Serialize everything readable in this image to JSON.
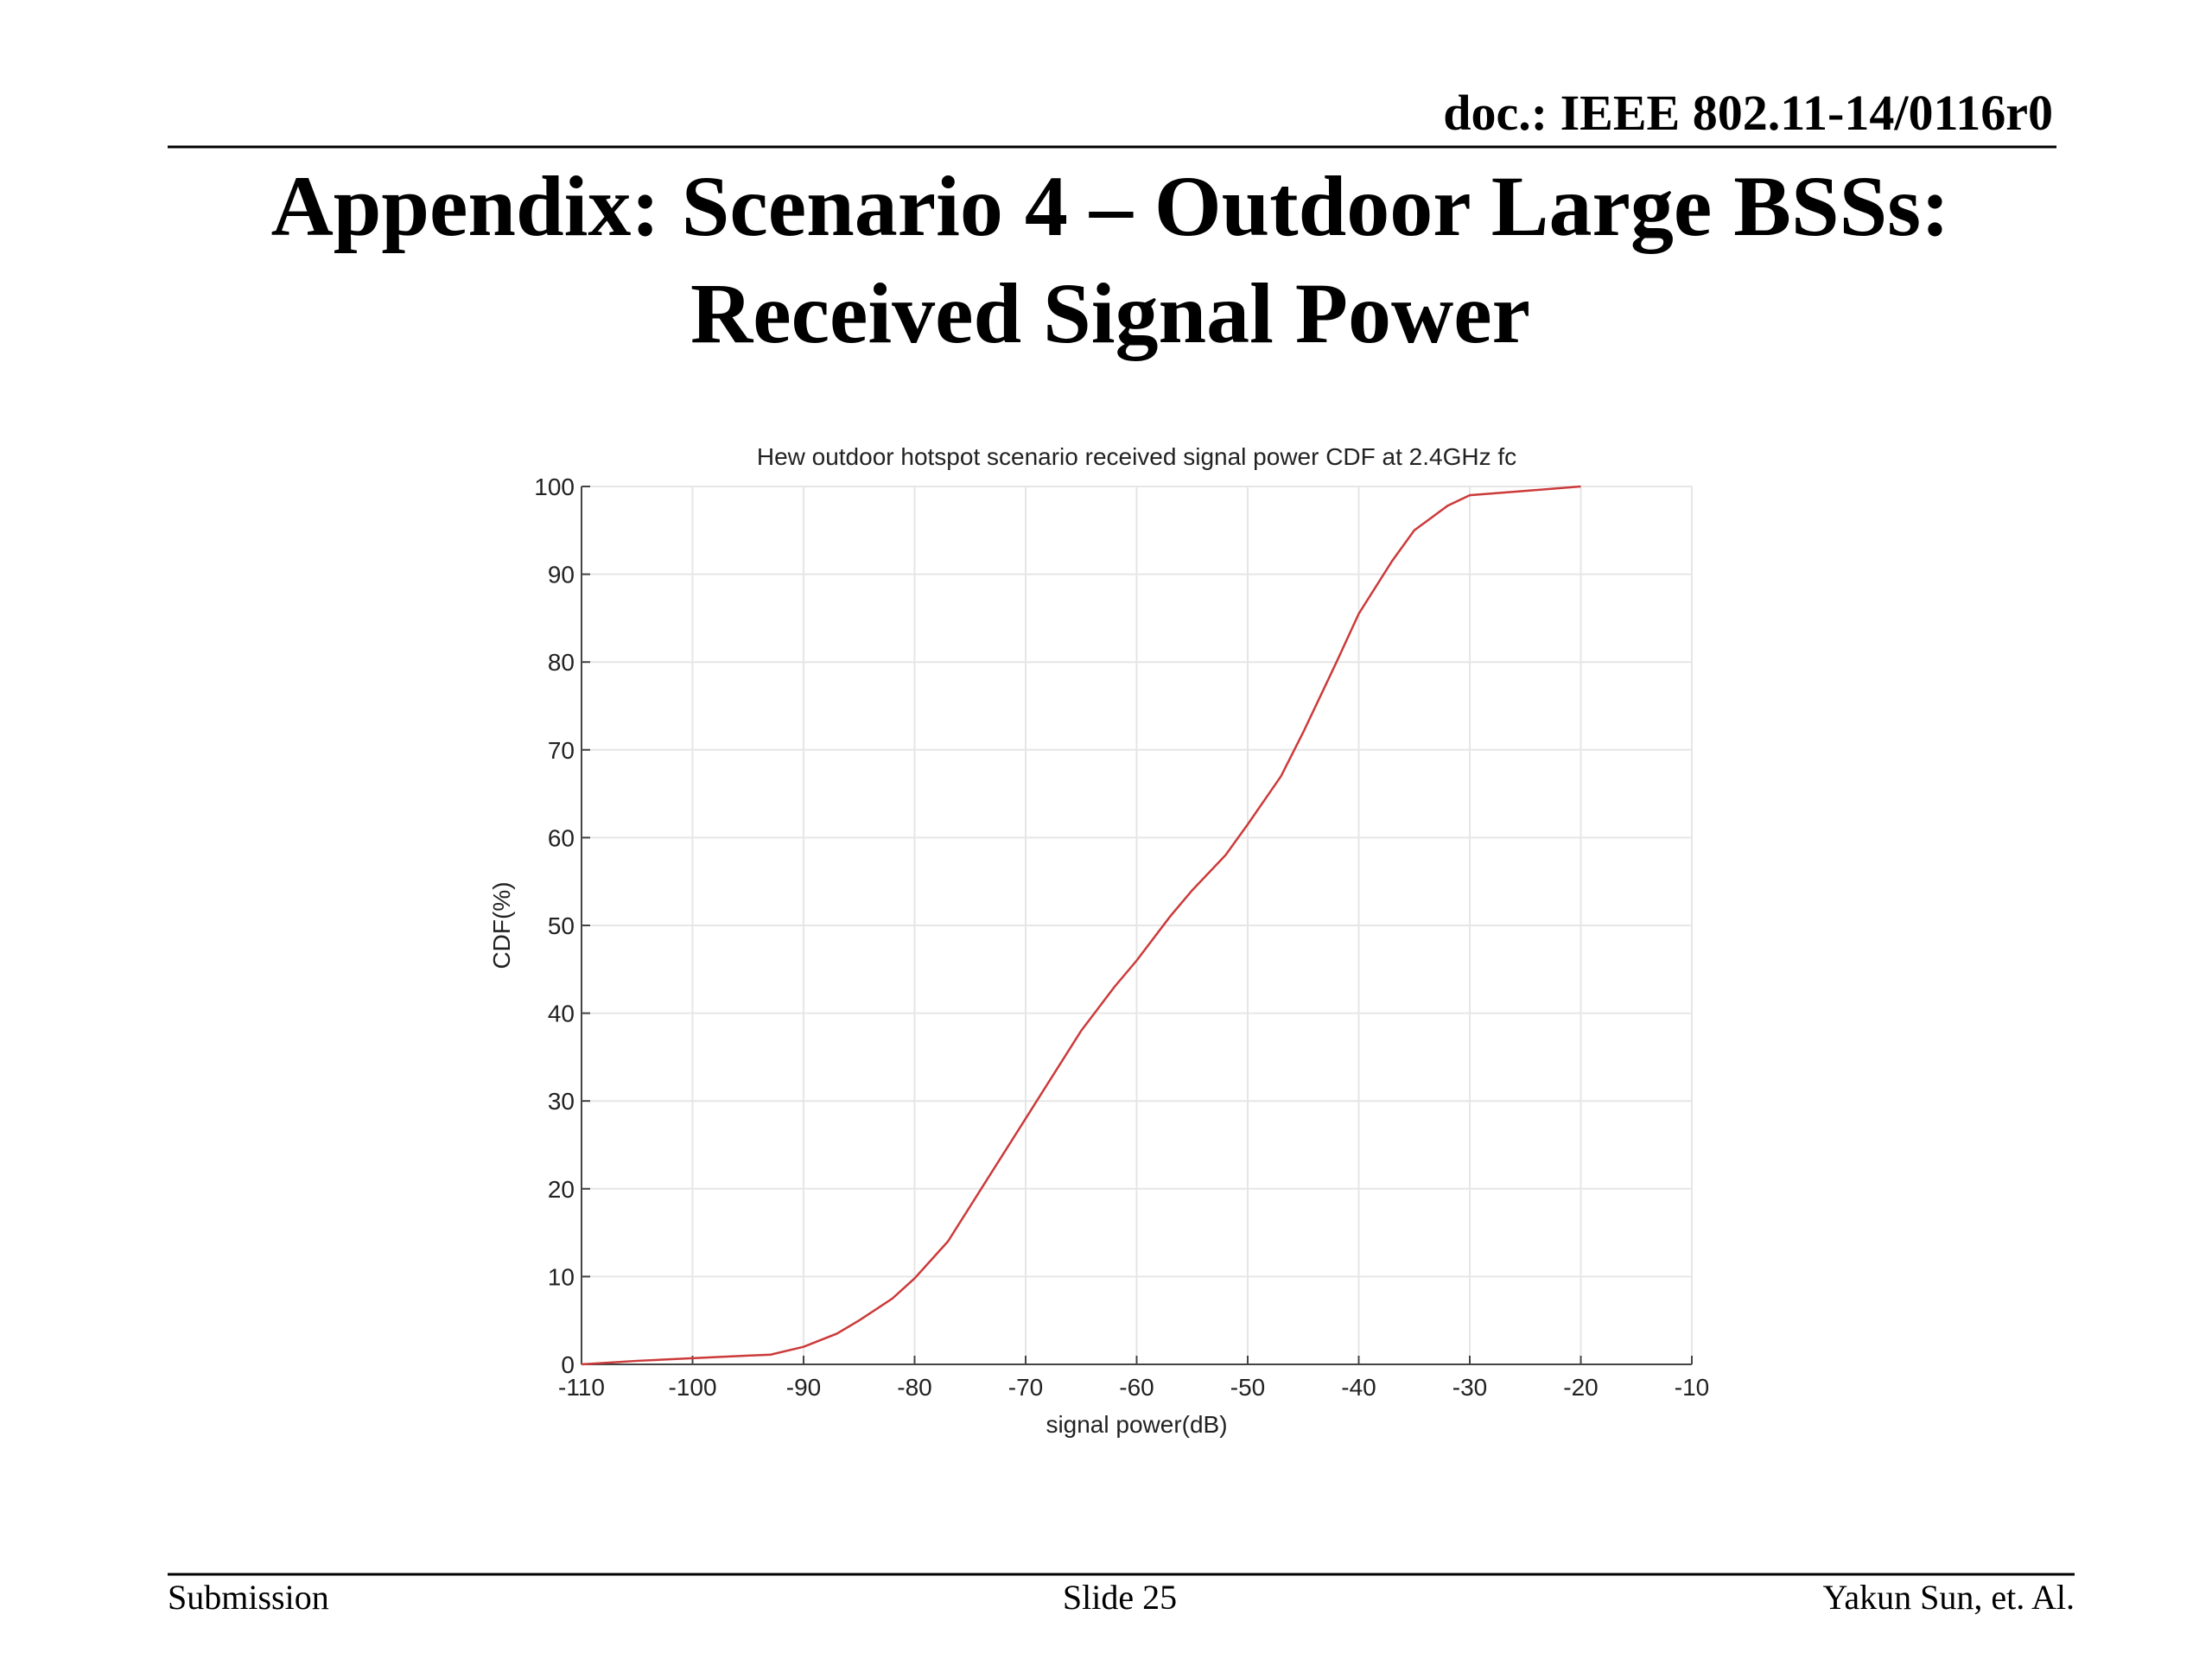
{
  "header": {
    "doc": "doc.: IEEE 802.11-14/0116r0",
    "title_line1": "Appendix: Scenario 4 – Outdoor Large BSSs:",
    "title_line2": "Received Signal Power"
  },
  "chart_data": {
    "type": "line",
    "title": "Hew outdoor hotspot scenario received signal power CDF at 2.4GHz fc",
    "xlabel": "signal power(dB)",
    "ylabel": "CDF(%)",
    "x": [
      -110,
      -105,
      -100,
      -95,
      -93,
      -90,
      -87,
      -85,
      -82,
      -80,
      -77,
      -75,
      -72,
      -70,
      -67,
      -65,
      -62,
      -60,
      -57,
      -55,
      -52,
      -50,
      -47,
      -45,
      -42,
      -40,
      -37,
      -35,
      -32,
      -30,
      -25,
      -20
    ],
    "values": [
      0,
      0.4,
      0.7,
      1.0,
      1.1,
      2,
      3.5,
      5,
      7.5,
      9.8,
      14,
      18,
      24,
      28,
      34,
      38,
      43,
      46,
      51,
      54,
      58,
      61.5,
      67,
      72,
      80,
      85.5,
      91.5,
      95,
      97.8,
      99,
      99.5,
      100
    ],
    "color": "#cc3a3a",
    "xlim": [
      -110,
      -10
    ],
    "ylim": [
      0,
      100
    ],
    "xticks": [
      -110,
      -100,
      -90,
      -80,
      -70,
      -60,
      -50,
      -40,
      -30,
      -20,
      -10
    ],
    "yticks": [
      0,
      10,
      20,
      30,
      40,
      50,
      60,
      70,
      80,
      90,
      100
    ],
    "grid": true
  },
  "footer": {
    "left": "Submission",
    "center": "Slide 25",
    "right": "Yakun Sun, et. Al."
  }
}
